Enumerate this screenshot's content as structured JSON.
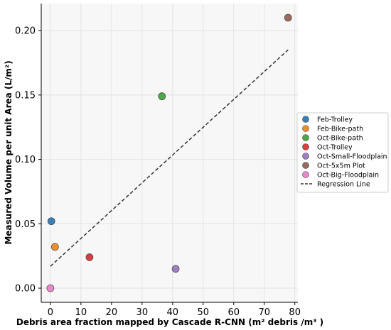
{
  "chart_data": {
    "type": "scatter",
    "xlabel": "Debris area fraction mapped by Cascade R-CNN (m² debris /m³ )",
    "ylabel": "Measured Volume per unit Area (L/m²)",
    "xlim": [
      -3,
      81
    ],
    "ylim": [
      -0.011,
      0.221
    ],
    "xticks": [
      0,
      10,
      20,
      30,
      40,
      50,
      60,
      70,
      80
    ],
    "yticks": [
      0.0,
      0.05,
      0.1,
      0.15,
      0.2
    ],
    "ytick_labels": [
      "0.00",
      "0.05",
      "0.10",
      "0.15",
      "0.20"
    ],
    "grid": true,
    "legend_position": "right",
    "series": [
      {
        "name": "Feb-Trolley",
        "color": "#3a7fb5",
        "points": [
          {
            "x": 0.3,
            "y": 0.052
          }
        ]
      },
      {
        "name": "Feb-Bike-path",
        "color": "#f28e2b",
        "points": [
          {
            "x": 1.5,
            "y": 0.032
          }
        ]
      },
      {
        "name": "Oct-Bike-path",
        "color": "#4aa84a",
        "points": [
          {
            "x": 36.5,
            "y": 0.149
          }
        ]
      },
      {
        "name": "Oct-Trolley",
        "color": "#d93d3d",
        "points": [
          {
            "x": 12.8,
            "y": 0.024
          }
        ]
      },
      {
        "name": "Oct-Small-Floodplain",
        "color": "#9e7fc4",
        "points": [
          {
            "x": 41,
            "y": 0.015
          }
        ]
      },
      {
        "name": "Oct-5x5m Plot",
        "color": "#9b6a5e",
        "points": [
          {
            "x": 77.8,
            "y": 0.21
          }
        ]
      },
      {
        "name": "Oct-Big-Floodplain",
        "color": "#e88ac9",
        "points": [
          {
            "x": 0,
            "y": 0.0
          }
        ]
      }
    ],
    "regression": {
      "name": "Regression Line",
      "color": "#333333",
      "x": [
        0,
        77.8
      ],
      "y": [
        0.017,
        0.185
      ]
    }
  }
}
